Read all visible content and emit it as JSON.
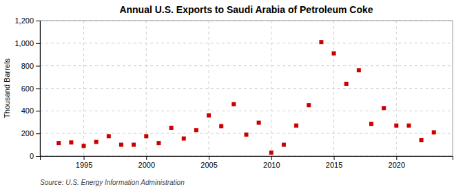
{
  "chart_data": {
    "type": "scatter",
    "title": "Annual U.S. Exports to Saudi Arabia of Petroleum Coke",
    "ylabel": "Thousand Barrels",
    "source": "Source: U.S. Energy Information Administration",
    "x": [
      1993,
      1994,
      1995,
      1996,
      1997,
      1998,
      1999,
      2000,
      2001,
      2002,
      2003,
      2004,
      2005,
      2006,
      2007,
      2008,
      2009,
      2010,
      2011,
      2012,
      2013,
      2014,
      2015,
      2016,
      2017,
      2018,
      2019,
      2020,
      2021,
      2022,
      2023
    ],
    "values": [
      115,
      120,
      90,
      125,
      175,
      100,
      100,
      175,
      115,
      250,
      155,
      230,
      360,
      265,
      460,
      190,
      295,
      30,
      100,
      270,
      450,
      1010,
      910,
      640,
      760,
      285,
      425,
      270,
      270,
      140,
      210
    ],
    "color": "#cc0000",
    "marker": "square",
    "xlim": [
      1991.5,
      2024.5
    ],
    "xticks": [
      1995,
      2000,
      2005,
      2010,
      2015,
      2020
    ],
    "ylim": [
      0,
      1200
    ],
    "yticks": [
      0,
      200,
      400,
      600,
      800,
      {
        "value": 1000,
        "label": "1,000"
      },
      {
        "value": 1200,
        "label": "1,200"
      }
    ],
    "grid": true
  }
}
